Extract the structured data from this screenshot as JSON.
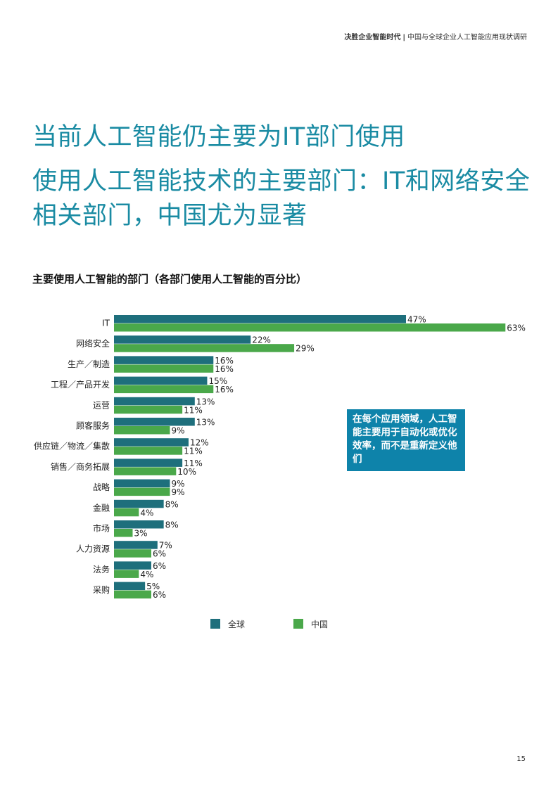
{
  "header": {
    "report_title": "决胜企业智能时代",
    "separator": "|",
    "report_subtitle": "中国与全球企业人工智能应用现状调研"
  },
  "headline": "当前人工智能仍主要为IT部门使用",
  "subheadline": "使用人工智能技术的主要部门：IT和网络安全相关部门，中国尤为显著",
  "callout_text": "在每个应用领域，人工智能主要用于自动化或优化效率，而不是重新定义他们",
  "page_number": "15",
  "colors": {
    "global": "#1e6f7c",
    "china": "#4aa84a",
    "heading": "#1a8ba3",
    "callout": "#0e83aa"
  },
  "chart_data": {
    "type": "bar",
    "orientation": "horizontal",
    "title": "主要使用人工智能的部门（各部门使用人工智能的百分比）",
    "categories": [
      "IT",
      "网络安全",
      "生产／制造",
      "工程／产品开发",
      "运营",
      "顾客服务",
      "供应链／物流／集散",
      "销售／商务拓展",
      "战略",
      "金融",
      "市场",
      "人力资源",
      "法务",
      "采购"
    ],
    "series": [
      {
        "name": "全球",
        "values": [
          47,
          22,
          16,
          15,
          13,
          13,
          12,
          11,
          9,
          8,
          8,
          7,
          6,
          5
        ]
      },
      {
        "name": "中国",
        "values": [
          63,
          29,
          16,
          16,
          11,
          9,
          11,
          10,
          9,
          4,
          3,
          6,
          4,
          6
        ]
      }
    ],
    "value_suffix": "%",
    "xlim": [
      0,
      63
    ],
    "legend_position": "bottom",
    "grid": false
  }
}
